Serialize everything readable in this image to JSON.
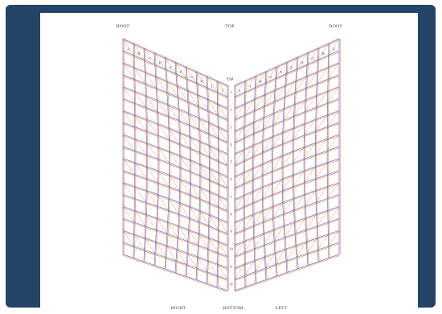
{
  "labels": {
    "top_left": "ROOT",
    "top_center": "TOP",
    "top_right": "ROOT",
    "tip": "TIP",
    "bottom_left": "RIGHT",
    "bottom_center": "BOTTOM",
    "bottom_right": "LEFT"
  },
  "spine_ticks": [
    "1",
    "2",
    "3",
    "4",
    "5",
    "6",
    "7",
    "8",
    "9",
    "10",
    "11",
    "12"
  ],
  "left_ticks": [
    "A",
    "B",
    "C",
    "D",
    "E",
    "F",
    "G",
    "H",
    "I",
    "J"
  ],
  "right_ticks": [
    "A",
    "B",
    "C",
    "D",
    "E",
    "F",
    "G",
    "H",
    "I",
    "J"
  ],
  "colors": {
    "frame": "#234466",
    "wire_blue": "#6f6fd0",
    "wire_orange": "#e07a3c",
    "text": "#333333"
  }
}
